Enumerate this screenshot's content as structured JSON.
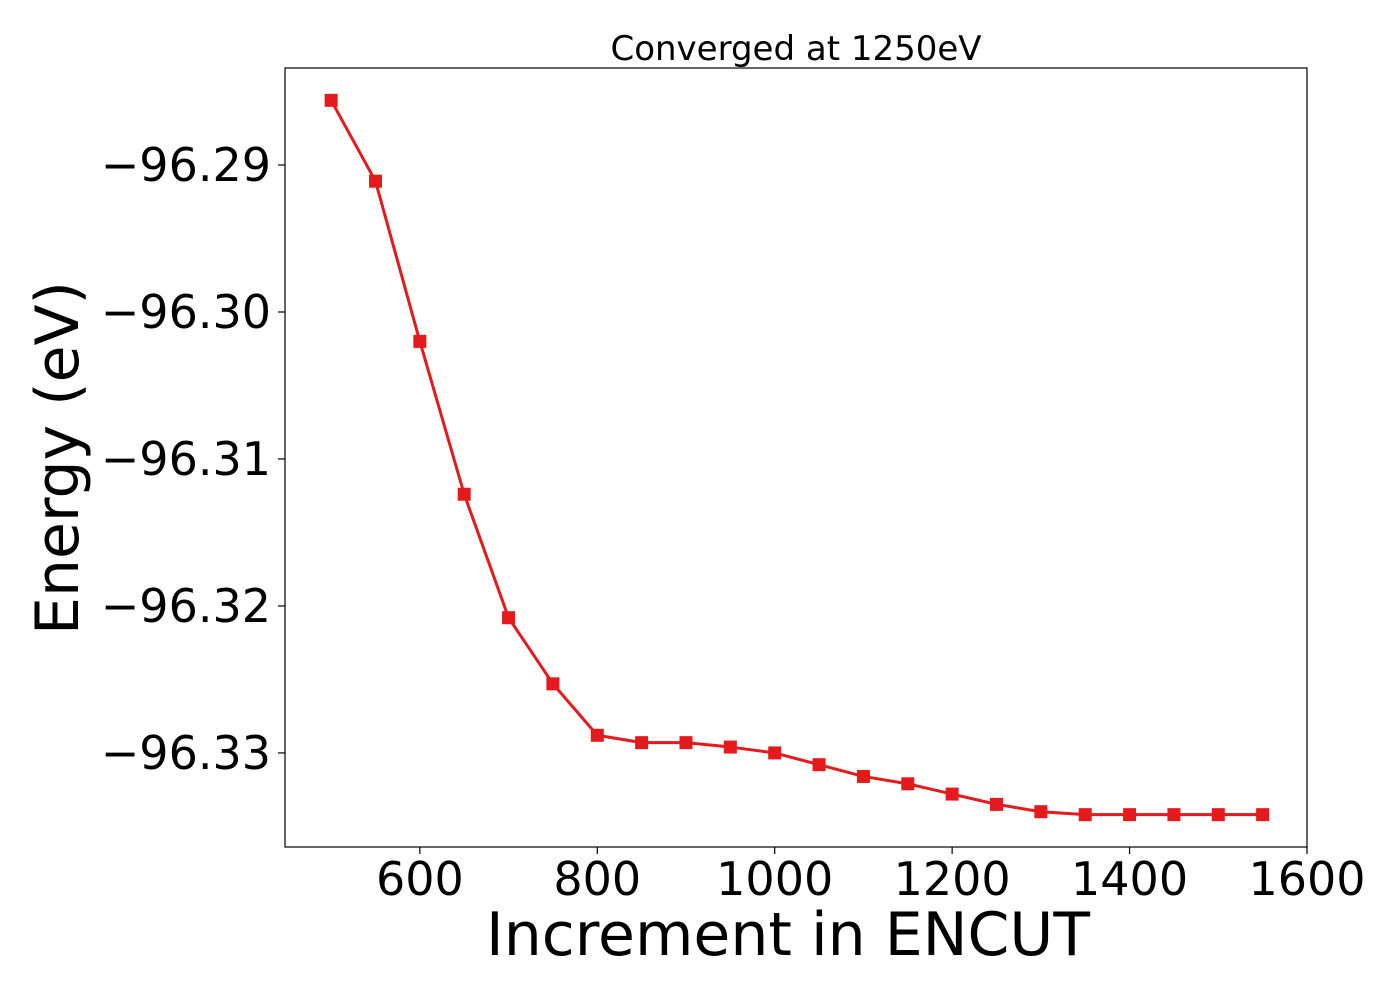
{
  "chart_data": {
    "type": "line",
    "title": "Converged at 1250eV",
    "xlabel": "Increment in ENCUT",
    "ylabel": "Energy (eV)",
    "xlim": [
      448,
      1600
    ],
    "ylim": [
      -96.3364,
      -96.2834
    ],
    "x_ticks": [
      {
        "value": 600,
        "label": "600"
      },
      {
        "value": 800,
        "label": "800"
      },
      {
        "value": 1000,
        "label": "1000"
      },
      {
        "value": 1200,
        "label": "1200"
      },
      {
        "value": 1400,
        "label": "1400"
      },
      {
        "value": 1600,
        "label": "1600"
      }
    ],
    "y_ticks": [
      {
        "value": -96.29,
        "label": "−96.29"
      },
      {
        "value": -96.3,
        "label": "−96.30"
      },
      {
        "value": -96.31,
        "label": "−96.31"
      },
      {
        "value": -96.32,
        "label": "−96.32"
      },
      {
        "value": -96.33,
        "label": "−96.33"
      }
    ],
    "grid": false,
    "legend": "none",
    "series": [
      {
        "color": "#e41a1c",
        "marker": "square",
        "x": [
          500,
          550,
          600,
          650,
          700,
          750,
          800,
          850,
          900,
          950,
          1000,
          1050,
          1100,
          1150,
          1200,
          1250,
          1300,
          1350,
          1400,
          1450,
          1500,
          1550
        ],
        "y": [
          -96.2856,
          -96.2911,
          -96.302,
          -96.3124,
          -96.3208,
          -96.3253,
          -96.3288,
          -96.3293,
          -96.3293,
          -96.3296,
          -96.33,
          -96.3308,
          -96.3316,
          -96.3321,
          -96.3328,
          -96.3335,
          -96.334,
          -96.3342,
          -96.3342,
          -96.3342,
          -96.3342,
          -96.3342
        ]
      }
    ]
  }
}
